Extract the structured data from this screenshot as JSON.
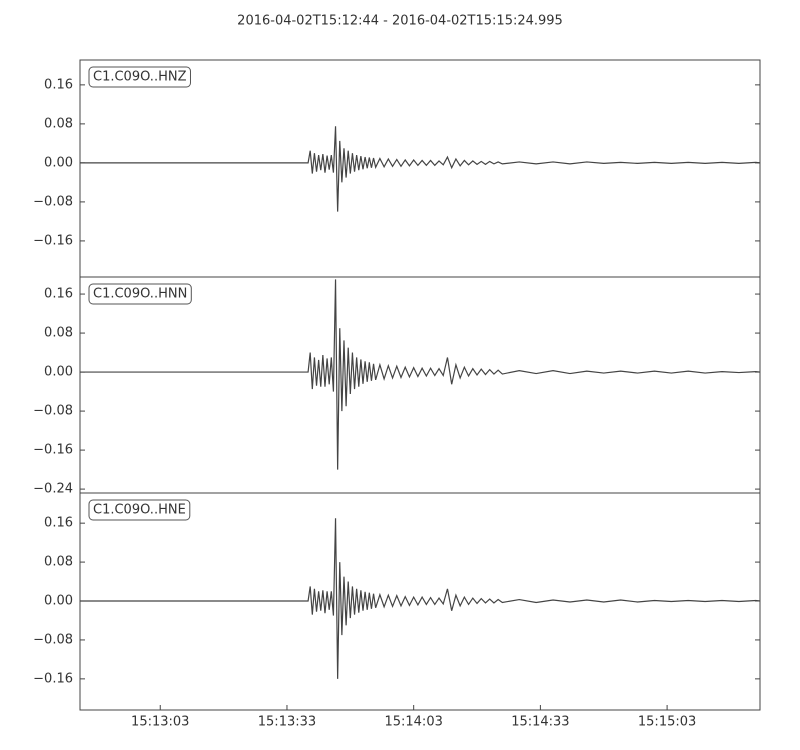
{
  "chart_data": [
    {
      "type": "line",
      "title": "2016-04-02T15:12:44  -  2016-04-02T15:15:24.995",
      "label": "C1.C09O..HNZ",
      "color": "#444444",
      "xlim": [
        0,
        160.995
      ],
      "ylim": [
        -0.234,
        0.211
      ],
      "yticks": [
        {
          "value": 0.16,
          "label": "0.16"
        },
        {
          "value": 0.08,
          "label": "0.08"
        },
        {
          "value": 0,
          "label": "0.00"
        },
        {
          "value": -0.08,
          "label": "−0.08"
        },
        {
          "value": -0.16,
          "label": "−0.16"
        }
      ],
      "x": [
        0,
        54,
        54.5,
        55,
        55.5,
        56,
        56.5,
        57,
        57.5,
        58,
        58.5,
        59,
        59.5,
        60,
        60.5,
        61,
        61.5,
        62,
        62.5,
        63,
        63.5,
        64,
        64.5,
        65,
        65.5,
        66,
        66.5,
        67,
        67.5,
        68,
        68.5,
        69,
        69.5,
        70,
        71,
        72,
        73,
        74,
        75,
        76,
        77,
        78,
        79,
        80,
        81,
        82,
        83,
        84,
        85,
        86,
        87,
        88,
        89,
        90,
        91,
        92,
        93,
        94,
        95,
        96,
        97,
        98,
        99,
        100,
        104,
        108,
        112,
        116,
        120,
        124,
        128,
        132,
        136,
        140,
        144,
        148,
        152,
        156,
        160,
        161
      ],
      "values": [
        0,
        0,
        0.025,
        -0.022,
        0.02,
        -0.018,
        0.016,
        -0.015,
        0.018,
        -0.02,
        0.015,
        -0.014,
        0.016,
        -0.02,
        0.075,
        -0.1,
        0.045,
        -0.04,
        0.03,
        -0.03,
        0.025,
        -0.022,
        0.02,
        -0.018,
        0.016,
        -0.015,
        0.014,
        -0.013,
        0.012,
        -0.011,
        0.011,
        -0.01,
        0.01,
        -0.009,
        0.009,
        -0.008,
        0.008,
        -0.007,
        0.007,
        -0.007,
        0.006,
        -0.006,
        0.006,
        -0.005,
        0.005,
        -0.005,
        0.005,
        -0.005,
        0.004,
        -0.004,
        0.012,
        -0.01,
        0.008,
        -0.006,
        0.005,
        -0.004,
        0.004,
        -0.003,
        0.003,
        -0.003,
        0.003,
        -0.002,
        0.002,
        -0.002,
        0.002,
        -0.002,
        0.002,
        -0.002,
        0.002,
        -0.001,
        0.001,
        -0.001,
        0.001,
        -0.001,
        0.001,
        -0.001,
        0.001,
        -0.001,
        0.001,
        0
      ]
    },
    {
      "type": "line",
      "label": "C1.C09O..HNN",
      "color": "#444444",
      "xlim": [
        0,
        160.995
      ],
      "ylim": [
        -0.248,
        0.195
      ],
      "yticks": [
        {
          "value": 0.16,
          "label": "0.16"
        },
        {
          "value": 0.08,
          "label": "0.08"
        },
        {
          "value": 0,
          "label": "0.00"
        },
        {
          "value": -0.08,
          "label": "−0.08"
        },
        {
          "value": -0.16,
          "label": "−0.16"
        },
        {
          "value": -0.24,
          "label": "−0.24"
        }
      ],
      "x": [
        0,
        54,
        54.5,
        55,
        55.5,
        56,
        56.5,
        57,
        57.5,
        58,
        58.5,
        59,
        59.5,
        60,
        60.5,
        61,
        61.5,
        62,
        62.5,
        63,
        63.5,
        64,
        64.5,
        65,
        65.5,
        66,
        66.5,
        67,
        67.5,
        68,
        68.5,
        69,
        69.5,
        70,
        71,
        72,
        73,
        74,
        75,
        76,
        77,
        78,
        79,
        80,
        81,
        82,
        83,
        84,
        85,
        86,
        87,
        88,
        89,
        90,
        91,
        92,
        93,
        94,
        95,
        96,
        97,
        98,
        99,
        100,
        104,
        108,
        112,
        116,
        120,
        124,
        128,
        132,
        136,
        140,
        144,
        148,
        152,
        156,
        160,
        161
      ],
      "values": [
        0,
        0,
        0.04,
        -0.035,
        0.03,
        -0.028,
        0.025,
        -0.03,
        0.035,
        -0.03,
        0.028,
        -0.025,
        0.03,
        -0.04,
        0.19,
        -0.2,
        0.09,
        -0.08,
        0.065,
        -0.07,
        0.05,
        -0.045,
        0.04,
        -0.035,
        0.03,
        -0.03,
        0.026,
        -0.024,
        0.022,
        -0.02,
        0.02,
        -0.018,
        0.017,
        -0.016,
        0.015,
        -0.014,
        0.013,
        -0.012,
        0.012,
        -0.011,
        0.01,
        -0.01,
        0.009,
        -0.009,
        0.008,
        -0.008,
        0.008,
        -0.007,
        0.007,
        -0.007,
        0.03,
        -0.025,
        0.015,
        -0.012,
        0.01,
        -0.008,
        0.007,
        -0.006,
        0.006,
        -0.005,
        0.005,
        -0.004,
        0.004,
        -0.004,
        0.003,
        -0.003,
        0.003,
        -0.003,
        0.002,
        -0.002,
        0.002,
        -0.002,
        0.002,
        -0.002,
        0.002,
        -0.002,
        0.001,
        -0.001,
        0.001,
        0
      ]
    },
    {
      "type": "line",
      "label": "C1.C09O..HNE",
      "color": "#444444",
      "xlim": [
        0,
        160.995
      ],
      "ylim": [
        -0.224,
        0.222
      ],
      "yticks": [
        {
          "value": 0.16,
          "label": "0.16"
        },
        {
          "value": 0.08,
          "label": "0.08"
        },
        {
          "value": 0,
          "label": "0.00"
        },
        {
          "value": -0.08,
          "label": "−0.08"
        },
        {
          "value": -0.16,
          "label": "−0.16"
        }
      ],
      "xticks": [
        {
          "value": 19,
          "label": "15:13:03"
        },
        {
          "value": 49,
          "label": "15:13:33"
        },
        {
          "value": 79,
          "label": "15:14:03"
        },
        {
          "value": 109,
          "label": "15:14:33"
        },
        {
          "value": 139,
          "label": "15:15:03"
        }
      ],
      "x": [
        0,
        54,
        54.5,
        55,
        55.5,
        56,
        56.5,
        57,
        57.5,
        58,
        58.5,
        59,
        59.5,
        60,
        60.5,
        61,
        61.5,
        62,
        62.5,
        63,
        63.5,
        64,
        64.5,
        65,
        65.5,
        66,
        66.5,
        67,
        67.5,
        68,
        68.5,
        69,
        69.5,
        70,
        71,
        72,
        73,
        74,
        75,
        76,
        77,
        78,
        79,
        80,
        81,
        82,
        83,
        84,
        85,
        86,
        87,
        88,
        89,
        90,
        91,
        92,
        93,
        94,
        95,
        96,
        97,
        98,
        99,
        100,
        104,
        108,
        112,
        116,
        120,
        124,
        128,
        132,
        136,
        140,
        144,
        148,
        152,
        156,
        160,
        161
      ],
      "values": [
        0,
        0,
        0.03,
        -0.028,
        0.025,
        -0.022,
        0.02,
        -0.02,
        0.022,
        -0.025,
        0.02,
        -0.018,
        0.02,
        -0.03,
        0.17,
        -0.16,
        0.08,
        -0.07,
        0.05,
        -0.05,
        0.04,
        -0.035,
        0.03,
        -0.028,
        0.025,
        -0.024,
        0.022,
        -0.02,
        0.019,
        -0.018,
        0.017,
        -0.016,
        0.015,
        -0.014,
        0.013,
        -0.012,
        0.012,
        -0.011,
        0.011,
        -0.01,
        0.009,
        -0.009,
        0.008,
        -0.008,
        0.008,
        -0.007,
        0.007,
        -0.007,
        0.006,
        -0.006,
        0.025,
        -0.02,
        0.012,
        -0.01,
        0.008,
        -0.007,
        0.006,
        -0.005,
        0.005,
        -0.004,
        0.004,
        -0.004,
        0.003,
        -0.003,
        0.003,
        -0.003,
        0.002,
        -0.002,
        0.002,
        -0.002,
        0.002,
        -0.002,
        0.001,
        -0.001,
        0.001,
        -0.001,
        0.001,
        -0.001,
        0.001,
        0
      ]
    }
  ]
}
